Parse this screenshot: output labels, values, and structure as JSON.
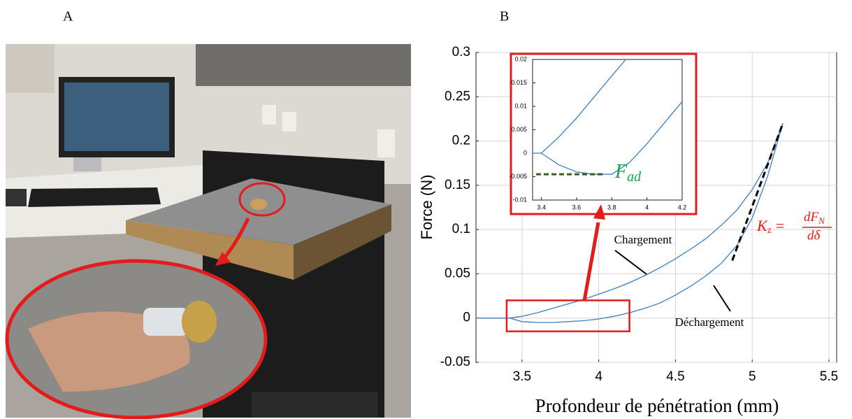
{
  "panel_labels": [
    "A",
    "B"
  ],
  "chart_data": [
    {
      "type": "line",
      "xlabel": "Profondeur de pénétration (mm)",
      "ylabel": "Force (N)",
      "xlim": [
        3.2,
        5.55
      ],
      "ylim": [
        -0.05,
        0.3
      ],
      "xticks": [
        3.5,
        4,
        4.5,
        5,
        5.5
      ],
      "yticks": [
        -0.05,
        0,
        0.05,
        0.1,
        0.15,
        0.2,
        0.25,
        0.3
      ],
      "grid": true,
      "color": "#3d7fc1",
      "series": [
        {
          "x": [
            3.2,
            3.42,
            3.5,
            3.6,
            3.7,
            3.8,
            3.9,
            4.0,
            4.1,
            4.2,
            4.3,
            4.4,
            4.5,
            4.6,
            4.7,
            4.8,
            4.9,
            5.0,
            5.1,
            5.2
          ],
          "values": [
            0,
            0,
            0.002,
            0.006,
            0.011,
            0.016,
            0.021,
            0.027,
            0.033,
            0.04,
            0.048,
            0.057,
            0.067,
            0.078,
            0.09,
            0.105,
            0.122,
            0.145,
            0.175,
            0.22
          ]
        },
        {
          "x": [
            5.2,
            5.1,
            5.0,
            4.9,
            4.8,
            4.7,
            4.6,
            4.5,
            4.4,
            4.3,
            4.2,
            4.1,
            4.0,
            3.9,
            3.8,
            3.7,
            3.6,
            3.5,
            3.42
          ],
          "values": [
            0.22,
            0.16,
            0.113,
            0.082,
            0.062,
            0.048,
            0.036,
            0.026,
            0.017,
            0.011,
            0.006,
            0.002,
            -0.001,
            -0.003,
            -0.004,
            -0.005,
            -0.005,
            -0.004,
            0
          ]
        }
      ],
      "zoom_box": {
        "x": [
          3.4,
          4.2
        ],
        "y": [
          -0.015,
          0.02
        ]
      },
      "tangent_line": {
        "x": [
          4.87,
          5.2
        ],
        "y": [
          0.065,
          0.22
        ]
      },
      "annotations": [
        "Chargement",
        "Déchargement"
      ],
      "formula": {
        "lhs": "K",
        "lhs_sub": "z",
        "eq": "=",
        "numerator": "dF",
        "numerator_sub": "N",
        "denominator": "dδ"
      }
    },
    {
      "type": "line",
      "xlim": [
        3.35,
        4.2
      ],
      "ylim": [
        -0.01,
        0.02
      ],
      "xticks": [
        3.4,
        3.6,
        3.8,
        4,
        4.2
      ],
      "yticks": [
        -0.01,
        -0.005,
        0,
        0.005,
        0.01,
        0.015,
        0.02
      ],
      "grid": false,
      "color": "#3d7fc1",
      "series": [
        {
          "x": [
            3.35,
            3.4,
            3.5,
            3.6,
            3.7,
            3.8,
            3.88
          ],
          "values": [
            0,
            0,
            0.0035,
            0.0075,
            0.012,
            0.0165,
            0.02
          ]
        },
        {
          "x": [
            3.4,
            3.5,
            3.6,
            3.7,
            3.8,
            3.9,
            4.0,
            4.1,
            4.2
          ],
          "values": [
            0,
            -0.0025,
            -0.004,
            -0.0045,
            -0.0045,
            -0.002,
            0.002,
            0.0065,
            0.011
          ]
        }
      ],
      "adhesion_line": {
        "x": [
          3.37,
          3.75
        ],
        "y": [
          -0.0045,
          -0.0045
        ]
      },
      "label": {
        "symbol": "F",
        "sub": "ad"
      }
    }
  ]
}
